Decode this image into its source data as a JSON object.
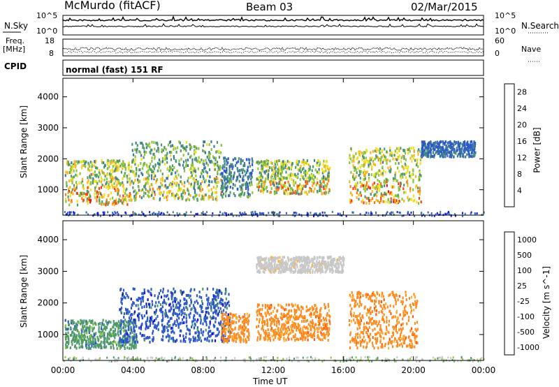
{
  "header": {
    "station": "McMurdo (fitACF)",
    "beam": "Beam 03",
    "date": "02/Mar/2015"
  },
  "strip_labels": {
    "nsky": "N.Sky",
    "nsky_tick_top": "10^5",
    "nsky_tick_bot": "10^0",
    "nsearch": "N.Search",
    "nsearch_tick_top": "10^5",
    "nsearch_tick_bot": "10^0",
    "freq_label": "Freq.",
    "freq_unit": "[MHz]",
    "freq_tick_top": "18",
    "freq_tick_bot": "8",
    "nave_label": "Nave",
    "nave_tick_top": "60",
    "nave_tick_bot": "0",
    "cpid_label": "CPID",
    "cpid_value": "normal (fast) 151 RF"
  },
  "colors": {
    "power": [
      "#1414ff",
      "#2c58c8",
      "#3c7a9c",
      "#4f9a6a",
      "#8cc43c",
      "#f0e020",
      "#ffb41e",
      "#ff7a14",
      "#ff3c14",
      "#e8140e"
    ],
    "velocity": [
      "#e8140e",
      "#ff5a14",
      "#ff8c1e",
      "#ffb43c",
      "#c8c8c8",
      "#c8c8c8",
      "#8cc43c",
      "#4f9a6a",
      "#2c58c8",
      "#1414c8"
    ]
  },
  "chart_data": [
    {
      "type": "heatmap",
      "title": "",
      "xlabel": "Time UT",
      "ylabel": "Slant Range [km]",
      "x_ticks": [
        "00:00",
        "04:00",
        "08:00",
        "12:00",
        "16:00",
        "20:00",
        "00:00"
      ],
      "y_ticks": [
        "1000",
        "2000",
        "3000",
        "4000"
      ],
      "xlim_hours": [
        0,
        24
      ],
      "ylim_km": [
        180,
        4600
      ],
      "colorbar": {
        "label": "Power [dB]",
        "ticks": [
          "4",
          "8",
          "12",
          "16",
          "20",
          "24",
          "28"
        ],
        "range": [
          0,
          30
        ]
      },
      "echo_regions": [
        {
          "t_start": 0.1,
          "t_end": 3.9,
          "r_low": 550,
          "r_high": 2000,
          "peak_db": 28
        },
        {
          "t_start": 3.9,
          "t_end": 9.0,
          "r_low": 700,
          "r_high": 2600,
          "peak_db": 22
        },
        {
          "t_start": 9.0,
          "t_end": 10.8,
          "r_low": 800,
          "r_high": 2100,
          "peak_db": 14
        },
        {
          "t_start": 11.0,
          "t_end": 15.2,
          "r_low": 900,
          "r_high": 2000,
          "peak_db": 26
        },
        {
          "t_start": 16.3,
          "t_end": 20.4,
          "r_low": 600,
          "r_high": 2400,
          "peak_db": 28
        },
        {
          "t_start": 20.4,
          "t_end": 23.5,
          "r_low": 2100,
          "r_high": 2600,
          "peak_db": 10
        }
      ]
    },
    {
      "type": "heatmap",
      "title": "",
      "xlabel": "Time UT",
      "ylabel": "Slant Range [km]",
      "x_ticks": [
        "00:00",
        "04:00",
        "08:00",
        "12:00",
        "16:00",
        "20:00",
        "00:00"
      ],
      "y_ticks": [
        "1000",
        "2000",
        "3000",
        "4000"
      ],
      "xlim_hours": [
        0,
        24
      ],
      "ylim_km": [
        180,
        4600
      ],
      "colorbar": {
        "label": "Velocity [m s^-1]",
        "ticks": [
          "1000",
          "500",
          "100",
          "25",
          "-25",
          "-100",
          "-500",
          "-1000"
        ],
        "range": [
          -1200,
          1200
        ]
      },
      "echo_regions": [
        {
          "t_start": 0.1,
          "t_end": 4.2,
          "r_low": 600,
          "r_high": 1500,
          "velocity": 150
        },
        {
          "t_start": 3.2,
          "t_end": 9.5,
          "r_low": 800,
          "r_high": 2500,
          "velocity": 600
        },
        {
          "t_start": 9.0,
          "t_end": 10.6,
          "r_low": 800,
          "r_high": 1700,
          "velocity": -450
        },
        {
          "t_start": 11.0,
          "t_end": 15.2,
          "r_low": 850,
          "r_high": 2000,
          "velocity": -450
        },
        {
          "t_start": 16.3,
          "t_end": 20.2,
          "r_low": 600,
          "r_high": 2400,
          "velocity": -450
        },
        {
          "t_start": 11.0,
          "t_end": 16.0,
          "r_low": 3000,
          "r_high": 3500,
          "velocity": 0
        }
      ]
    }
  ]
}
